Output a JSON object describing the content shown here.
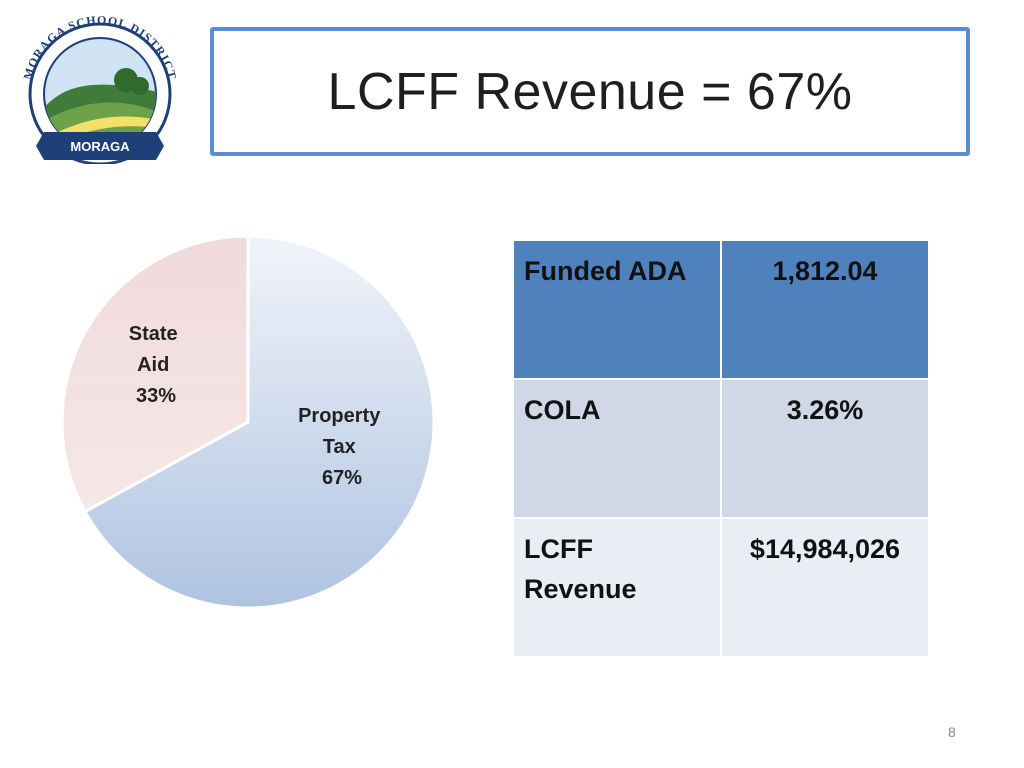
{
  "title": "LCFF Revenue = 67%",
  "logo": {
    "arc_text": "MORAGA SCHOOL DISTRICT",
    "banner_text": "MORAGA"
  },
  "chart_data": {
    "type": "pie",
    "slices": [
      {
        "line1": "Property",
        "line2": "Tax",
        "value": 67,
        "value_label": "67%",
        "color": "#b3c7e3"
      },
      {
        "line1": "State",
        "line2": "Aid",
        "value": 33,
        "value_label": "33%",
        "color": "#efd6d6"
      }
    ]
  },
  "table": {
    "rows": [
      {
        "label_lines": [
          "Funded ADA"
        ],
        "value": "1,812.04"
      },
      {
        "label_lines": [
          "COLA"
        ],
        "value": "3.26%"
      },
      {
        "label_lines": [
          "LCFF",
          "Revenue"
        ],
        "value": "$14,984,026"
      }
    ]
  },
  "page_number": "8",
  "colors": {
    "title_border": "#5b8ed0",
    "header_row": "#4f81bd",
    "row_2": "#d0d8e8",
    "row_3": "#e9edf4"
  }
}
